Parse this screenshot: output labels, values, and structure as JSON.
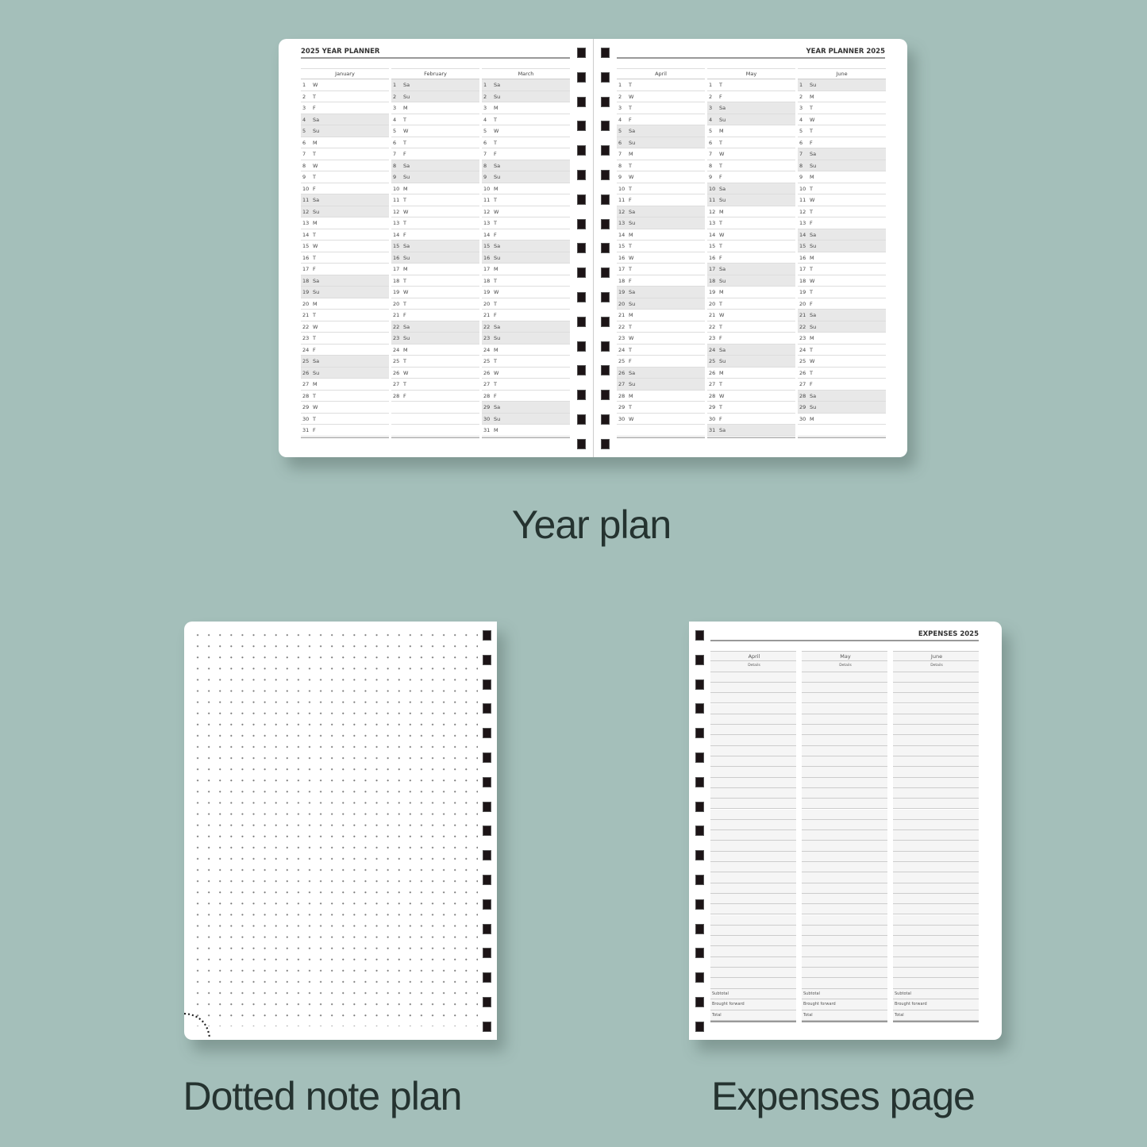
{
  "year_planner": {
    "left_title": "2025 YEAR PLANNER",
    "right_title": "YEAR PLANNER 2025",
    "weekend_days": [
      "Sa",
      "Su"
    ],
    "months": [
      {
        "name": "January",
        "days": [
          "W",
          "T",
          "F",
          "Sa",
          "Su",
          "M",
          "T",
          "W",
          "T",
          "F",
          "Sa",
          "Su",
          "M",
          "T",
          "W",
          "T",
          "F",
          "Sa",
          "Su",
          "M",
          "T",
          "W",
          "T",
          "F",
          "Sa",
          "Su",
          "M",
          "T",
          "W",
          "T",
          "F"
        ]
      },
      {
        "name": "February",
        "days": [
          "Sa",
          "Su",
          "M",
          "T",
          "W",
          "T",
          "F",
          "Sa",
          "Su",
          "M",
          "T",
          "W",
          "T",
          "F",
          "Sa",
          "Su",
          "M",
          "T",
          "W",
          "T",
          "F",
          "Sa",
          "Su",
          "M",
          "T",
          "W",
          "T",
          "F"
        ]
      },
      {
        "name": "March",
        "days": [
          "Sa",
          "Su",
          "M",
          "T",
          "W",
          "T",
          "F",
          "Sa",
          "Su",
          "M",
          "T",
          "W",
          "T",
          "F",
          "Sa",
          "Su",
          "M",
          "T",
          "W",
          "T",
          "F",
          "Sa",
          "Su",
          "M",
          "T",
          "W",
          "T",
          "F",
          "Sa",
          "Su",
          "M"
        ]
      },
      {
        "name": "April",
        "days": [
          "T",
          "W",
          "T",
          "F",
          "Sa",
          "Su",
          "M",
          "T",
          "W",
          "T",
          "F",
          "Sa",
          "Su",
          "M",
          "T",
          "W",
          "T",
          "F",
          "Sa",
          "Su",
          "M",
          "T",
          "W",
          "T",
          "F",
          "Sa",
          "Su",
          "M",
          "T",
          "W"
        ]
      },
      {
        "name": "May",
        "days": [
          "T",
          "F",
          "Sa",
          "Su",
          "M",
          "T",
          "W",
          "T",
          "F",
          "Sa",
          "Su",
          "M",
          "T",
          "W",
          "T",
          "F",
          "Sa",
          "Su",
          "M",
          "T",
          "W",
          "T",
          "F",
          "Sa",
          "Su",
          "M",
          "T",
          "W",
          "T",
          "F",
          "Sa"
        ]
      },
      {
        "name": "June",
        "days": [
          "Su",
          "M",
          "T",
          "W",
          "T",
          "F",
          "Sa",
          "Su",
          "M",
          "T",
          "W",
          "T",
          "F",
          "Sa",
          "Su",
          "M",
          "T",
          "W",
          "T",
          "F",
          "Sa",
          "Su",
          "M",
          "T",
          "W",
          "T",
          "F",
          "Sa",
          "Su",
          "M"
        ]
      }
    ],
    "caption": "Year plan"
  },
  "dotted": {
    "caption": "Dotted note plan"
  },
  "expenses": {
    "title": "EXPENSES 2025",
    "months": [
      "April",
      "May",
      "June"
    ],
    "details_label": "Details",
    "footer_rows": [
      "Subtotal",
      "Brought forward",
      "Total"
    ],
    "caption": "Expenses page"
  },
  "colors": {
    "background": "#a4bfba",
    "weekend_shade": "#e8e8e8",
    "ring": "#1c1416"
  }
}
